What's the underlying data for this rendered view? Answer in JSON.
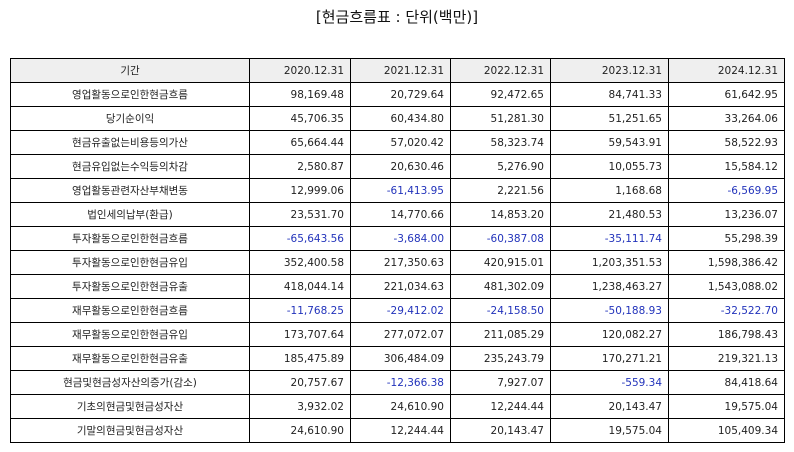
{
  "title": "[현금흐름표 : 단위(백만)]",
  "table": {
    "columns": [
      "기간",
      "2020.12.31",
      "2021.12.31",
      "2022.12.31",
      "2023.12.31",
      "2024.12.31"
    ],
    "rows": [
      {
        "label": "영업활동으로인한현금흐름",
        "values": [
          "98,169.48",
          "20,729.64",
          "92,472.65",
          "84,741.33",
          "61,642.95"
        ]
      },
      {
        "label": "당기순이익",
        "values": [
          "45,706.35",
          "60,434.80",
          "51,281.30",
          "51,251.65",
          "33,264.06"
        ]
      },
      {
        "label": "현금유출없는비용등의가산",
        "values": [
          "65,664.44",
          "57,020.42",
          "58,323.74",
          "59,543.91",
          "58,522.93"
        ]
      },
      {
        "label": "현금유입없는수익등의차감",
        "values": [
          "2,580.87",
          "20,630.46",
          "5,276.90",
          "10,055.73",
          "15,584.12"
        ]
      },
      {
        "label": "영업활동관련자산부채변동",
        "values": [
          "12,999.06",
          "-61,413.95",
          "2,221.56",
          "1,168.68",
          "-6,569.95"
        ]
      },
      {
        "label": "법인세의납부(환급)",
        "values": [
          "23,531.70",
          "14,770.66",
          "14,853.20",
          "21,480.53",
          "13,236.07"
        ]
      },
      {
        "label": "투자활동으로인한현금흐름",
        "values": [
          "-65,643.56",
          "-3,684.00",
          "-60,387.08",
          "-35,111.74",
          "55,298.39"
        ]
      },
      {
        "label": "투자활동으로인한현금유입",
        "values": [
          "352,400.58",
          "217,350.63",
          "420,915.01",
          "1,203,351.53",
          "1,598,386.42"
        ]
      },
      {
        "label": "투자활동으로인한현금유출",
        "values": [
          "418,044.14",
          "221,034.63",
          "481,302.09",
          "1,238,463.27",
          "1,543,088.02"
        ]
      },
      {
        "label": "재무활동으로인한현금흐름",
        "values": [
          "-11,768.25",
          "-29,412.02",
          "-24,158.50",
          "-50,188.93",
          "-32,522.70"
        ]
      },
      {
        "label": "재무활동으로인한현금유입",
        "values": [
          "173,707.64",
          "277,072.07",
          "211,085.29",
          "120,082.27",
          "186,798.43"
        ]
      },
      {
        "label": "재무활동으로인한현금유출",
        "values": [
          "185,475.89",
          "306,484.09",
          "235,243.79",
          "170,271.21",
          "219,321.13"
        ]
      },
      {
        "label": "현금및현금성자산의증가(감소)",
        "values": [
          "20,757.67",
          "-12,366.38",
          "7,927.07",
          "-559.34",
          "84,418.64"
        ]
      },
      {
        "label": "기초의현금및현금성자산",
        "values": [
          "3,932.02",
          "24,610.90",
          "12,244.44",
          "20,143.47",
          "19,575.04"
        ]
      },
      {
        "label": "기말의현금및현금성자산",
        "values": [
          "24,610.90",
          "12,244.44",
          "20,143.47",
          "19,575.04",
          "105,409.34"
        ]
      }
    ]
  },
  "colors": {
    "negative": "#2233bb",
    "header_bg": "#efefef",
    "border": "#000000"
  }
}
